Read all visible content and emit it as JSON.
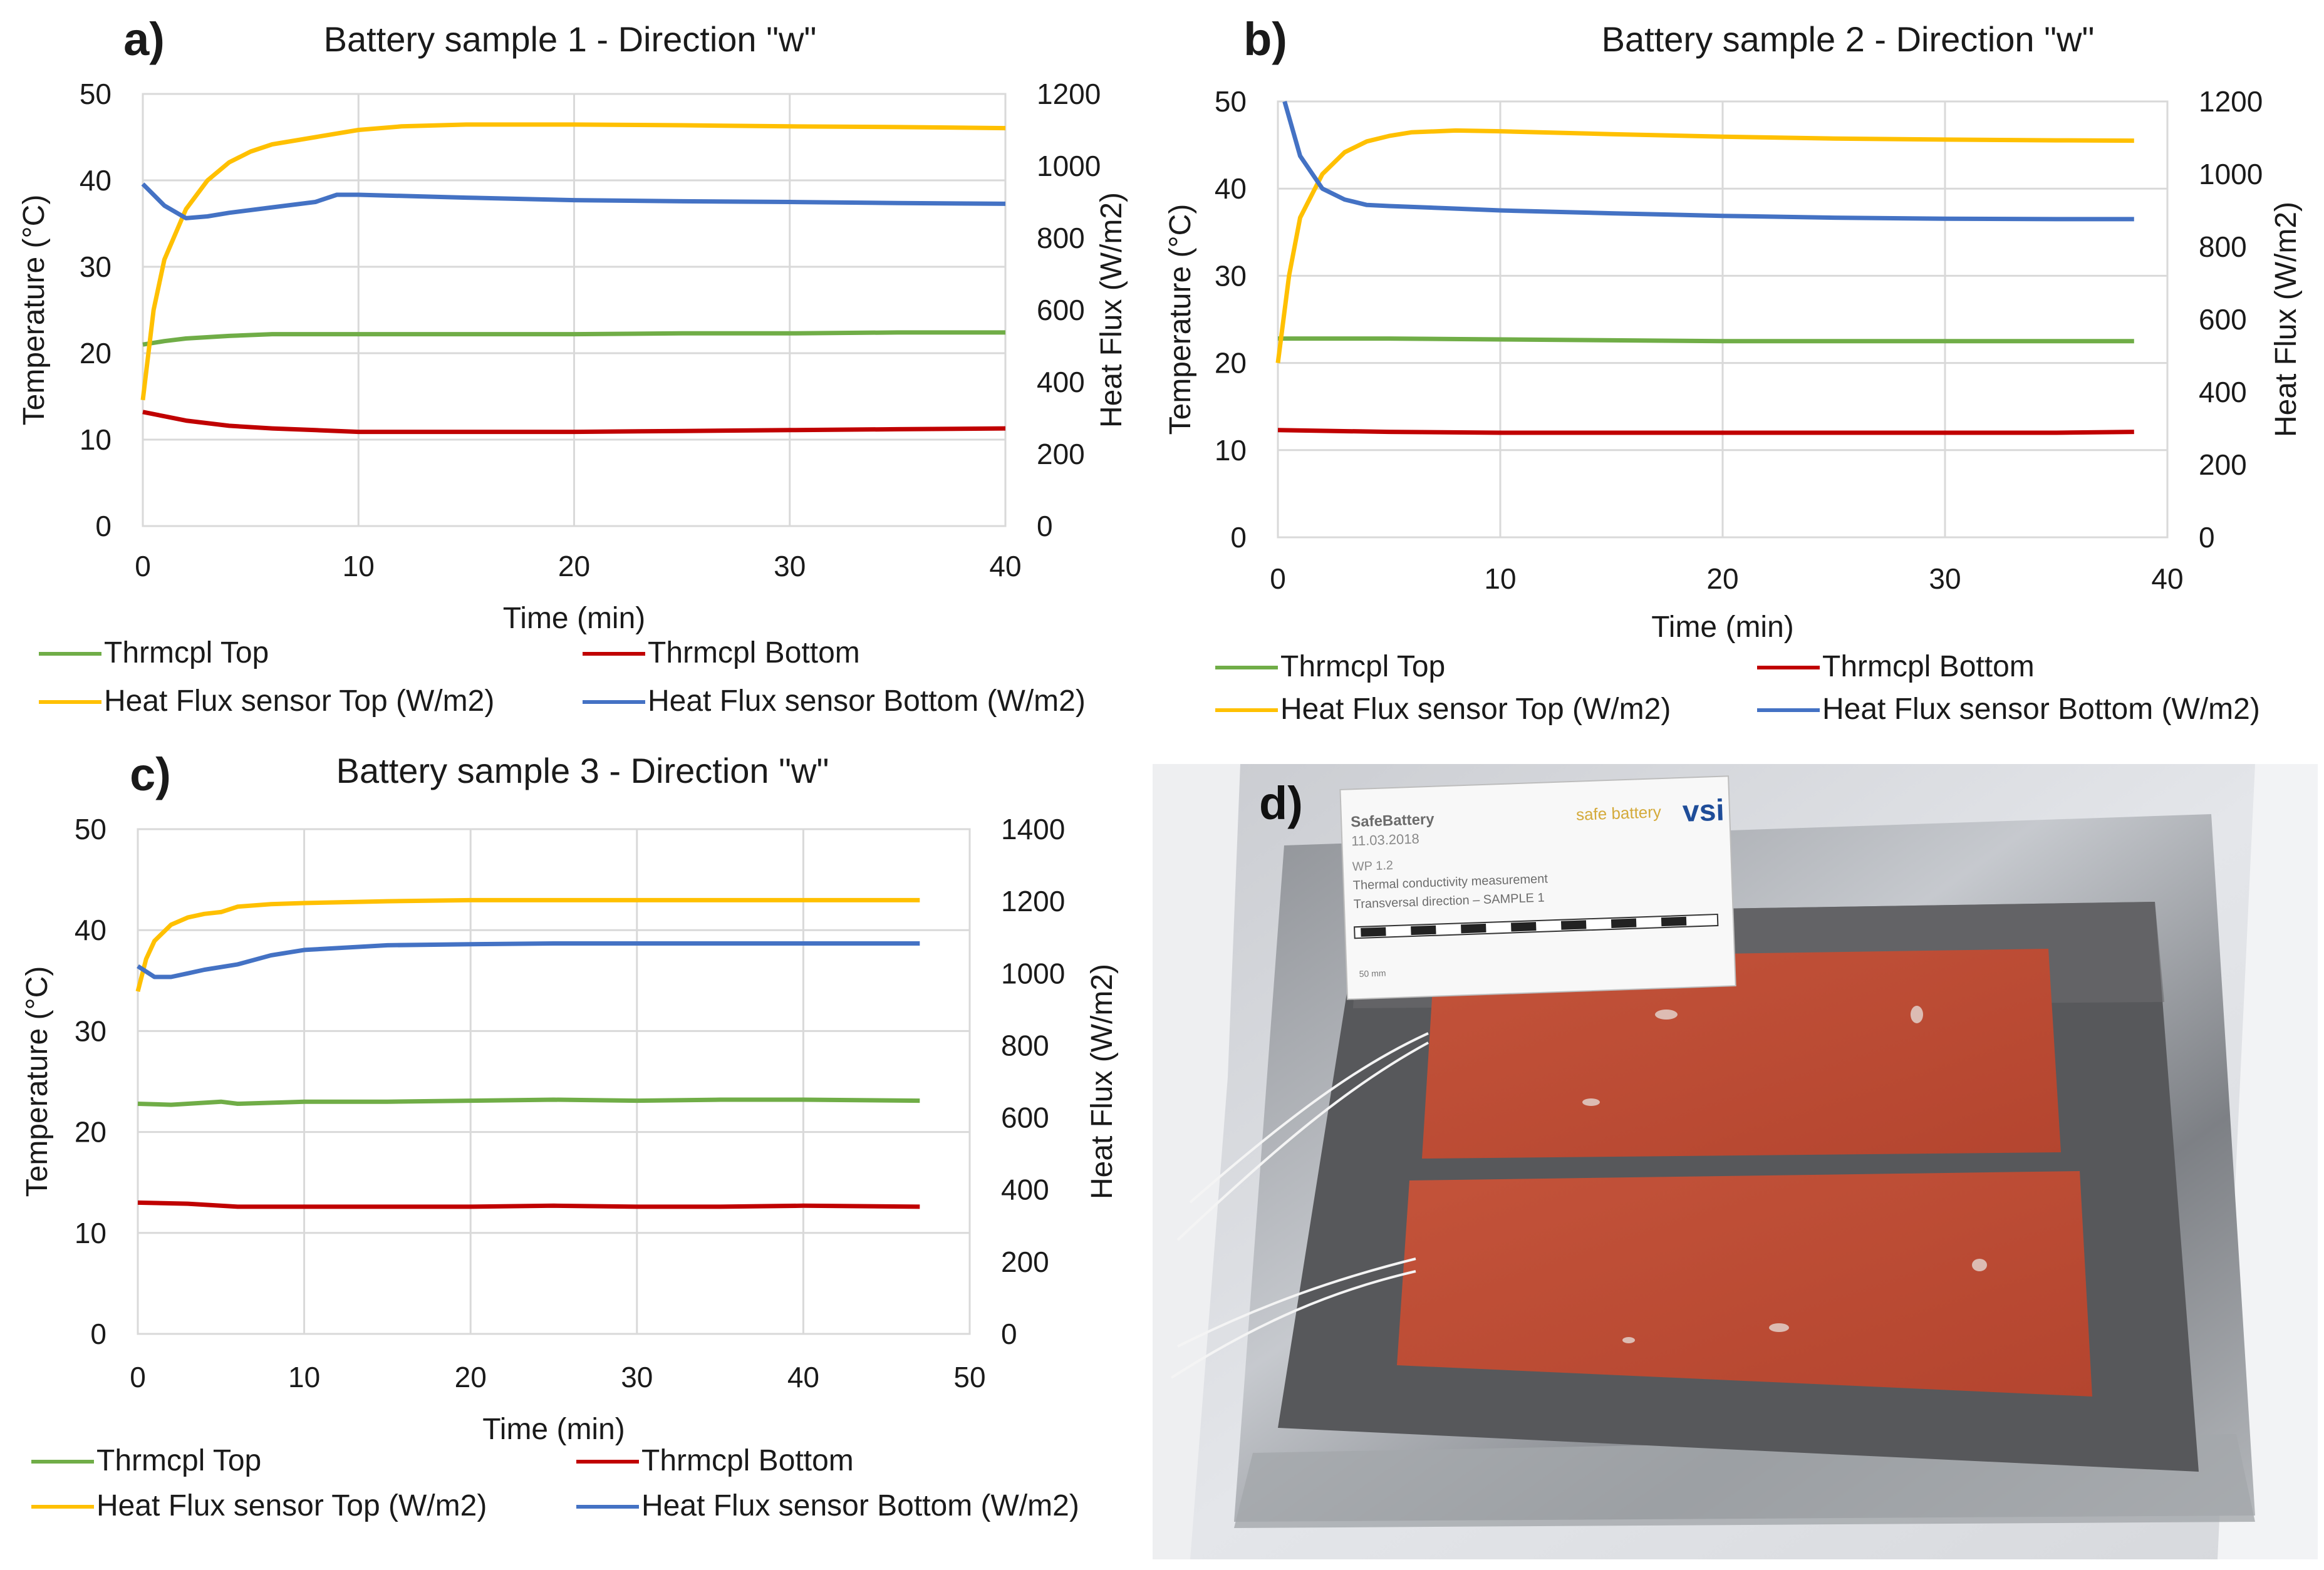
{
  "panels": [
    {
      "letter": "a)",
      "title": "Battery sample 1 - Direction \"w\"",
      "xlabel": "Time (min)",
      "ylabel_left": "Temperature (°C)",
      "ylabel_right": "Heat Flux (W/m2)",
      "xticks": [
        "0",
        "10",
        "20",
        "30",
        "40"
      ],
      "yticks_left": [
        "0",
        "10",
        "20",
        "30",
        "40",
        "50"
      ],
      "yticks_right": [
        "0",
        "200",
        "400",
        "600",
        "800",
        "1000",
        "1200"
      ]
    },
    {
      "letter": "b)",
      "title": "Battery sample 2 - Direction \"w\"",
      "xlabel": "Time (min)",
      "ylabel_left": "Temperature (°C)",
      "ylabel_right": "Heat Flux (W/m2)",
      "xticks": [
        "0",
        "10",
        "20",
        "30",
        "40"
      ],
      "yticks_left": [
        "0",
        "10",
        "20",
        "30",
        "40",
        "50"
      ],
      "yticks_right": [
        "0",
        "200",
        "400",
        "600",
        "800",
        "1000",
        "1200"
      ]
    },
    {
      "letter": "c)",
      "title": "Battery sample 3 - Direction \"w\"",
      "xlabel": "Time (min)",
      "ylabel_left": "Temperature (°C)",
      "ylabel_right": "Heat Flux (W/m2)",
      "xticks": [
        "0",
        "10",
        "20",
        "30",
        "40",
        "50"
      ],
      "yticks_left": [
        "0",
        "10",
        "20",
        "30",
        "40",
        "50"
      ],
      "yticks_right": [
        "0",
        "200",
        "400",
        "600",
        "800",
        "1000",
        "1200",
        "1400"
      ]
    }
  ],
  "legend": {
    "thrm_top": "Thrmcpl Top",
    "thrm_bottom": "Thrmcpl Bottom",
    "hf_top": "Heat Flux sensor Top (W/m2)",
    "hf_bottom": "Heat Flux sensor Bottom (W/m2)"
  },
  "colors": {
    "thrm_top": "#70ad47",
    "thrm_bottom": "#c00000",
    "hf_top": "#ffc000",
    "hf_bottom": "#4472c4",
    "grid": "#d9d9d9"
  },
  "photo": {
    "letter": "d)",
    "card_title": "SafeBattery",
    "card_date": "11.03.2018",
    "card_wp": "WP 1.2",
    "card_line1": "Thermal conductivity measurement",
    "card_line2": "Transversal direction – SAMPLE 1",
    "card_scale": "50 mm",
    "logo_safe": "safe battery",
    "logo_vsi": "vsi"
  },
  "chart_data": [
    {
      "type": "line",
      "title": "Battery sample 1 - Direction \"w\"",
      "xlabel": "Time (min)",
      "ylabel": "Temperature (°C)",
      "y2label": "Heat Flux (W/m2)",
      "xlim": [
        0,
        40
      ],
      "ylim": [
        0,
        50
      ],
      "y2lim": [
        0,
        1200
      ],
      "grid": true,
      "legend": "bottom",
      "series": [
        {
          "name": "Thrmcpl Top",
          "axis": "left",
          "x": [
            0,
            1,
            2,
            4,
            6,
            10,
            15,
            20,
            25,
            30,
            35,
            40
          ],
          "y": [
            21,
            21.4,
            21.7,
            22,
            22.2,
            22.2,
            22.2,
            22.2,
            22.3,
            22.3,
            22.4,
            22.4
          ]
        },
        {
          "name": "Thrmcpl Bottom",
          "axis": "left",
          "x": [
            0,
            1,
            2,
            4,
            6,
            8,
            10,
            15,
            20,
            25,
            30,
            35,
            40
          ],
          "y": [
            13.2,
            12.7,
            12.2,
            11.6,
            11.3,
            11.1,
            10.9,
            10.9,
            10.9,
            11,
            11.1,
            11.2,
            11.3
          ]
        },
        {
          "name": "Heat Flux sensor Top (W/m2)",
          "axis": "right",
          "x": [
            0,
            0.5,
            1,
            2,
            3,
            4,
            5,
            6,
            8,
            10,
            12,
            15,
            20,
            25,
            30,
            35,
            40
          ],
          "y": [
            350,
            600,
            740,
            880,
            960,
            1010,
            1040,
            1060,
            1080,
            1100,
            1110,
            1115,
            1115,
            1113,
            1110,
            1108,
            1105
          ]
        },
        {
          "name": "Heat Flux sensor Bottom (W/m2)",
          "axis": "right",
          "x": [
            0,
            1,
            2,
            3,
            4,
            6,
            8,
            9,
            10,
            15,
            20,
            25,
            30,
            35,
            40
          ],
          "y": [
            950,
            890,
            855,
            860,
            870,
            885,
            900,
            920,
            920,
            912,
            905,
            902,
            900,
            897,
            895
          ]
        }
      ]
    },
    {
      "type": "line",
      "title": "Battery sample 2 - Direction \"w\"",
      "xlabel": "Time (min)",
      "ylabel": "Temperature (°C)",
      "y2label": "Heat Flux (W/m2)",
      "xlim": [
        0,
        40
      ],
      "ylim": [
        0,
        50
      ],
      "y2lim": [
        0,
        1200
      ],
      "grid": true,
      "legend": "bottom",
      "series": [
        {
          "name": "Thrmcpl Top",
          "axis": "left",
          "x": [
            0,
            2,
            5,
            10,
            15,
            20,
            25,
            30,
            35,
            38.5
          ],
          "y": [
            22.8,
            22.8,
            22.8,
            22.7,
            22.6,
            22.5,
            22.5,
            22.5,
            22.5,
            22.5
          ]
        },
        {
          "name": "Thrmcpl Bottom",
          "axis": "left",
          "x": [
            0,
            5,
            10,
            15,
            20,
            25,
            30,
            35,
            38.5
          ],
          "y": [
            12.3,
            12.1,
            12,
            12,
            12,
            12,
            12,
            12,
            12.1
          ]
        },
        {
          "name": "Heat Flux sensor Top (W/m2)",
          "axis": "right",
          "x": [
            0,
            0.5,
            1,
            2,
            3,
            4,
            5,
            6,
            8,
            10,
            15,
            20,
            25,
            30,
            35,
            38.5
          ],
          "y": [
            480,
            720,
            880,
            1000,
            1060,
            1090,
            1105,
            1115,
            1120,
            1118,
            1110,
            1103,
            1098,
            1095,
            1093,
            1092
          ]
        },
        {
          "name": "Heat Flux sensor Bottom (W/m2)",
          "axis": "right",
          "x": [
            0.3,
            1,
            2,
            3,
            4,
            5,
            8,
            10,
            15,
            20,
            25,
            30,
            35,
            38.5
          ],
          "y": [
            1200,
            1050,
            960,
            930,
            915,
            912,
            905,
            900,
            892,
            885,
            880,
            877,
            876,
            876
          ]
        }
      ]
    },
    {
      "type": "line",
      "title": "Battery sample 3 - Direction \"w\"",
      "xlabel": "Time (min)",
      "ylabel": "Temperature (°C)",
      "y2label": "Heat Flux (W/m2)",
      "xlim": [
        0,
        50
      ],
      "ylim": [
        0,
        50
      ],
      "y2lim": [
        0,
        1400
      ],
      "grid": true,
      "legend": "bottom",
      "series": [
        {
          "name": "Thrmcpl Top",
          "axis": "left",
          "x": [
            0,
            2,
            5,
            6,
            10,
            15,
            20,
            25,
            30,
            35,
            40,
            47
          ],
          "y": [
            22.8,
            22.7,
            23,
            22.8,
            23,
            23,
            23.1,
            23.2,
            23.1,
            23.2,
            23.2,
            23.1
          ]
        },
        {
          "name": "Thrmcpl Bottom",
          "axis": "left",
          "x": [
            0,
            3,
            6,
            10,
            15,
            20,
            25,
            30,
            35,
            40,
            47
          ],
          "y": [
            13,
            12.9,
            12.6,
            12.6,
            12.6,
            12.6,
            12.7,
            12.6,
            12.6,
            12.7,
            12.6
          ]
        },
        {
          "name": "Heat Flux sensor Top (W/m2)",
          "axis": "right",
          "x": [
            0,
            0.5,
            1,
            2,
            3,
            4,
            5,
            6,
            8,
            10,
            15,
            20,
            25,
            30,
            35,
            40,
            47
          ],
          "y": [
            950,
            1040,
            1090,
            1135,
            1155,
            1165,
            1170,
            1185,
            1192,
            1195,
            1200,
            1203,
            1203,
            1203,
            1203,
            1203,
            1203
          ]
        },
        {
          "name": "Heat Flux sensor Bottom (W/m2)",
          "axis": "right",
          "x": [
            0,
            1,
            2,
            3,
            4,
            6,
            8,
            10,
            15,
            20,
            25,
            30,
            35,
            40,
            47
          ],
          "y": [
            1020,
            990,
            990,
            1000,
            1010,
            1025,
            1050,
            1065,
            1078,
            1081,
            1083,
            1083,
            1083,
            1083,
            1083
          ]
        }
      ]
    }
  ]
}
